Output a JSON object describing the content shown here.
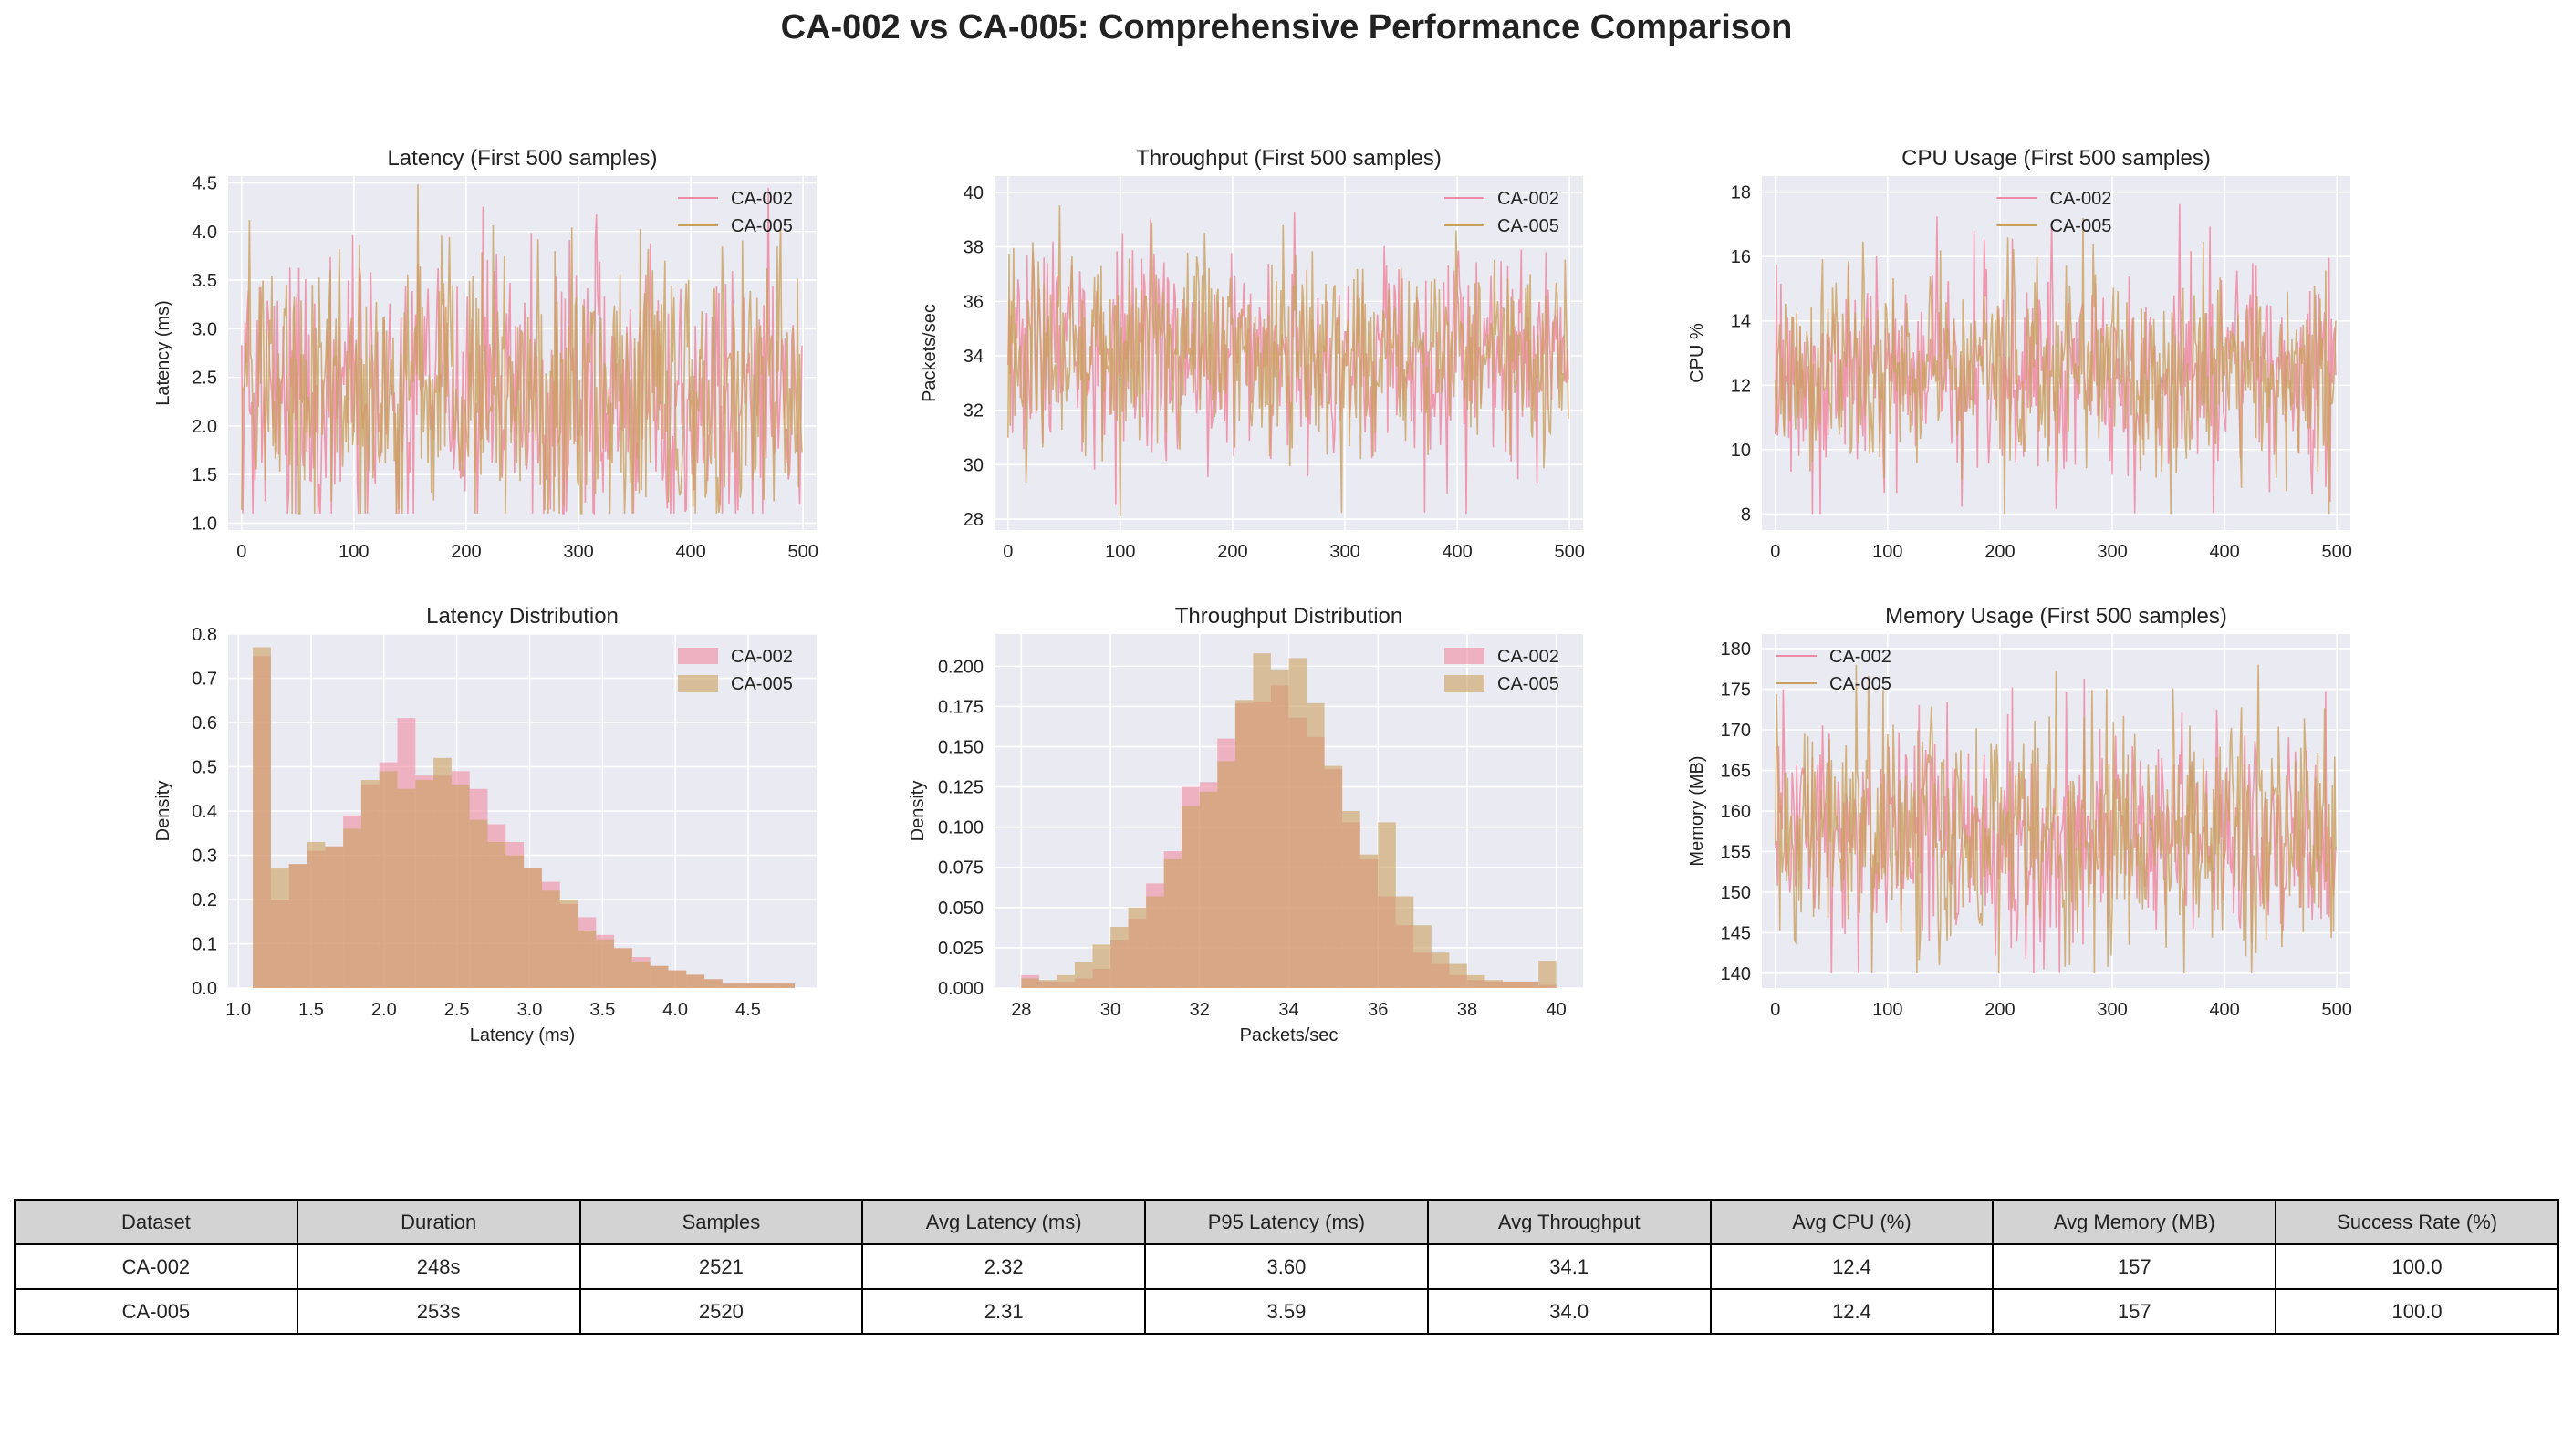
{
  "title": "CA-002 vs CA-005: Comprehensive Performance Comparison",
  "colors": {
    "CA-002": "#ee8aa2",
    "CA-005": "#c9a05e",
    "overlap": "#d4a27a",
    "panel_bg": "#eaeaf2",
    "grid": "#ffffff"
  },
  "chart_data": [
    {
      "id": "latency_ts",
      "type": "line",
      "title": "Latency (First 500 samples)",
      "xlabel": "",
      "ylabel": "Latency (ms)",
      "xlim": [
        -12,
        512
      ],
      "ylim": [
        0.93,
        4.57
      ],
      "xticks": [
        0,
        100,
        200,
        300,
        400,
        500
      ],
      "yticks": [
        "1.0",
        "1.5",
        "2.0",
        "2.5",
        "3.0",
        "3.5",
        "4.0",
        "4.5"
      ],
      "legend": "top-right",
      "series": [
        {
          "name": "CA-002",
          "n": 500,
          "mean": 2.32,
          "std": 0.75,
          "min": 1.1,
          "max": 4.45,
          "seed": 21
        },
        {
          "name": "CA-005",
          "n": 500,
          "mean": 2.31,
          "std": 0.75,
          "min": 1.1,
          "max": 4.5,
          "seed": 57
        }
      ]
    },
    {
      "id": "throughput_ts",
      "type": "line",
      "title": "Throughput (First 500 samples)",
      "xlabel": "",
      "ylabel": "Packets/sec",
      "xlim": [
        -12,
        512
      ],
      "ylim": [
        27.6,
        40.6
      ],
      "xticks": [
        0,
        100,
        200,
        300,
        400,
        500
      ],
      "yticks": [
        "28",
        "30",
        "32",
        "34",
        "36",
        "38",
        "40"
      ],
      "legend": "top-right",
      "series": [
        {
          "name": "CA-002",
          "n": 500,
          "mean": 34.1,
          "std": 1.9,
          "min": 28.2,
          "max": 39.8,
          "seed": 33
        },
        {
          "name": "CA-005",
          "n": 500,
          "mean": 34.0,
          "std": 1.9,
          "min": 28.1,
          "max": 40.0,
          "seed": 91
        }
      ]
    },
    {
      "id": "cpu_ts",
      "type": "line",
      "title": "CPU Usage (First 500 samples)",
      "xlabel": "",
      "ylabel": "CPU %",
      "xlim": [
        -12,
        512
      ],
      "ylim": [
        7.5,
        18.5
      ],
      "xticks": [
        0,
        100,
        200,
        300,
        400,
        500
      ],
      "yticks": [
        "8",
        "10",
        "12",
        "14",
        "16",
        "18"
      ],
      "legend": "top-center",
      "series": [
        {
          "name": "CA-002",
          "n": 500,
          "mean": 12.4,
          "std": 1.7,
          "min": 8.0,
          "max": 18.0,
          "seed": 12
        },
        {
          "name": "CA-005",
          "n": 500,
          "mean": 12.4,
          "std": 1.7,
          "min": 8.0,
          "max": 17.2,
          "seed": 77
        }
      ]
    },
    {
      "id": "latency_hist",
      "type": "bar",
      "title": "Latency Distribution",
      "xlabel": "Latency (ms)",
      "ylabel": "Density",
      "xlim": [
        0.93,
        4.97
      ],
      "ylim": [
        0,
        0.8
      ],
      "xticks": [
        "1.0",
        "1.5",
        "2.0",
        "2.5",
        "3.0",
        "3.5",
        "4.0",
        "4.5"
      ],
      "yticks": [
        "0.0",
        "0.1",
        "0.2",
        "0.3",
        "0.4",
        "0.5",
        "0.6",
        "0.7",
        "0.8"
      ],
      "legend": "top-right",
      "bin_start": 1.1,
      "bin_width": 0.124,
      "series": [
        {
          "name": "CA-002",
          "values": [
            0.75,
            0.2,
            0.28,
            0.31,
            0.32,
            0.39,
            0.46,
            0.51,
            0.61,
            0.48,
            0.48,
            0.49,
            0.45,
            0.37,
            0.33,
            0.27,
            0.24,
            0.19,
            0.16,
            0.12,
            0.09,
            0.07,
            0.05,
            0.04,
            0.03,
            0.02,
            0.01,
            0.01,
            0.01,
            0.01
          ]
        },
        {
          "name": "CA-005",
          "values": [
            0.77,
            0.27,
            0.28,
            0.33,
            0.32,
            0.36,
            0.47,
            0.49,
            0.45,
            0.47,
            0.52,
            0.46,
            0.38,
            0.33,
            0.3,
            0.27,
            0.22,
            0.2,
            0.13,
            0.11,
            0.09,
            0.06,
            0.05,
            0.04,
            0.03,
            0.02,
            0.01,
            0.01,
            0.01,
            0.01
          ]
        }
      ]
    },
    {
      "id": "throughput_hist",
      "type": "bar",
      "title": "Throughput Distribution",
      "xlabel": "Packets/sec",
      "ylabel": "Density",
      "xlim": [
        27.4,
        40.6
      ],
      "ylim": [
        0,
        0.22
      ],
      "xticks": [
        "28",
        "30",
        "32",
        "34",
        "36",
        "38",
        "40"
      ],
      "yticks": [
        "0.000",
        "0.025",
        "0.050",
        "0.075",
        "0.100",
        "0.125",
        "0.150",
        "0.175",
        "0.200"
      ],
      "legend": "top-right",
      "bin_start": 28.0,
      "bin_width": 0.4,
      "series": [
        {
          "name": "CA-002",
          "values": [
            0.008,
            0.004,
            0.004,
            0.006,
            0.012,
            0.03,
            0.043,
            0.065,
            0.085,
            0.125,
            0.128,
            0.155,
            0.177,
            0.178,
            0.188,
            0.168,
            0.156,
            0.136,
            0.103,
            0.08,
            0.057,
            0.039,
            0.022,
            0.015,
            0.008,
            0.005,
            0.004,
            0.004,
            0.004,
            0.002
          ]
        },
        {
          "name": "CA-005",
          "values": [
            0.006,
            0.005,
            0.008,
            0.016,
            0.027,
            0.038,
            0.05,
            0.057,
            0.08,
            0.113,
            0.122,
            0.141,
            0.179,
            0.208,
            0.198,
            0.205,
            0.177,
            0.138,
            0.11,
            0.083,
            0.103,
            0.057,
            0.039,
            0.022,
            0.015,
            0.008,
            0.005,
            0.004,
            0.004,
            0.017
          ]
        }
      ]
    },
    {
      "id": "memory_ts",
      "type": "line",
      "title": "Memory Usage (First 500 samples)",
      "xlabel": "",
      "ylabel": "Memory (MB)",
      "xlim": [
        -12,
        512
      ],
      "ylim": [
        138.2,
        181.8
      ],
      "xticks": [
        0,
        100,
        200,
        300,
        400,
        500
      ],
      "yticks": [
        "140",
        "145",
        "150",
        "155",
        "160",
        "165",
        "170",
        "175",
        "180"
      ],
      "legend": "top-left",
      "series": [
        {
          "name": "CA-002",
          "n": 500,
          "mean": 157,
          "std": 7.5,
          "min": 140,
          "max": 180,
          "seed": 44
        },
        {
          "name": "CA-005",
          "n": 500,
          "mean": 157,
          "std": 7.5,
          "min": 140,
          "max": 178,
          "seed": 66
        }
      ]
    }
  ],
  "table": {
    "headers": [
      "Dataset",
      "Duration",
      "Samples",
      "Avg Latency (ms)",
      "P95 Latency (ms)",
      "Avg Throughput",
      "Avg CPU (%)",
      "Avg Memory (MB)",
      "Success Rate (%)"
    ],
    "rows": [
      [
        "CA-002",
        "248s",
        "2521",
        "2.32",
        "3.60",
        "34.1",
        "12.4",
        "157",
        "100.0"
      ],
      [
        "CA-005",
        "253s",
        "2520",
        "2.31",
        "3.59",
        "34.0",
        "12.4",
        "157",
        "100.0"
      ]
    ]
  }
}
